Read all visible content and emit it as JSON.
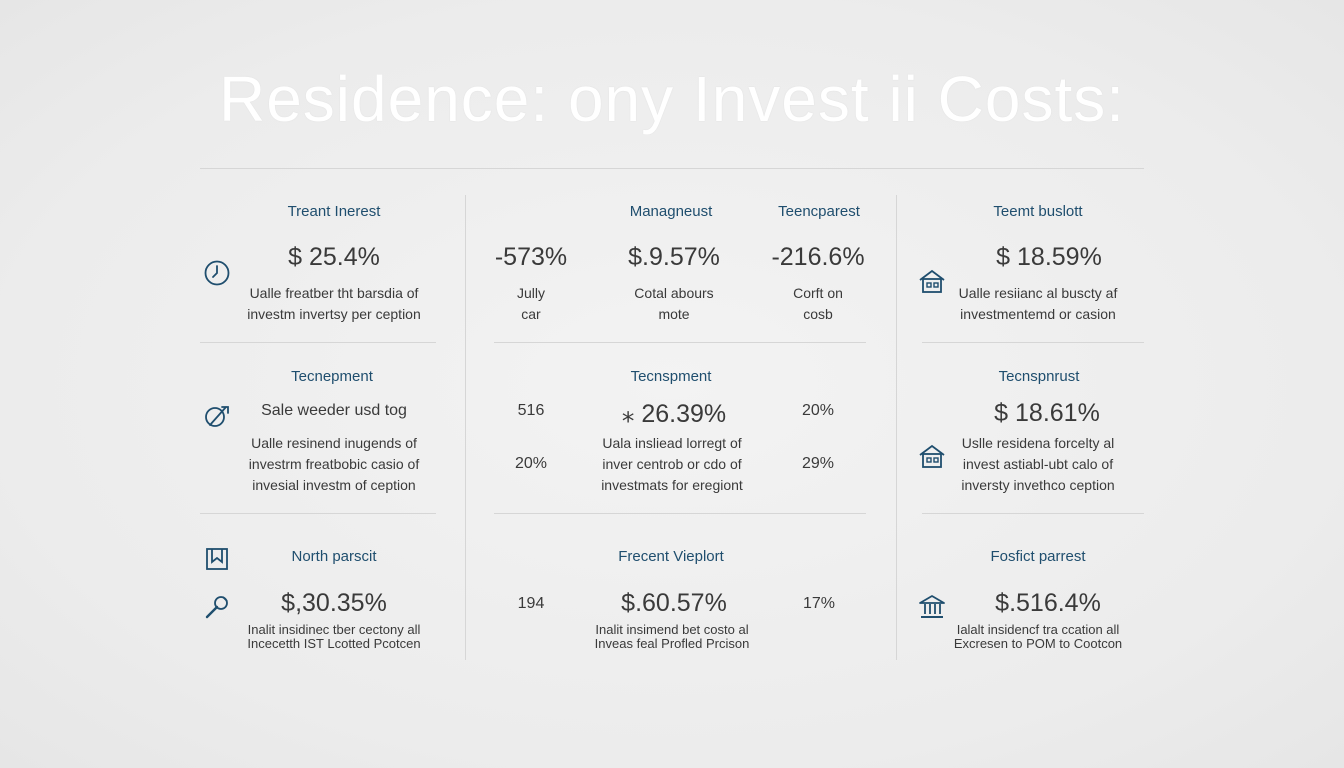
{
  "title": "Residence: ony Invest ii Costs:",
  "colors": {
    "accent": "#1f4e6e",
    "text": "#3a3a3a",
    "rule": "#d6d6d6"
  },
  "left": {
    "r1": {
      "header": "Treant Inerest",
      "value": "$ 25.4%",
      "desc1": "Ualle freatber tht barsdia of",
      "desc2": "investm invertsy per ception",
      "icon": "clock-icon"
    },
    "r2": {
      "header": "Tecnepment",
      "sub": "Sale weeder usd tog",
      "desc1": "Ualle resinend inugends of",
      "desc2": "investrm freatbobic casio of",
      "desc3": "invesial investm of ception",
      "icon": "leaf-pen-icon"
    },
    "r3": {
      "header": "North parscit",
      "value": "$,30.35%",
      "desc1": "Inalit insidinec tber cectony all",
      "desc2": "Incecetth IST Lcotted Pcotcen",
      "icon1": "building-icon",
      "icon2": "wrench-icon"
    }
  },
  "middle": {
    "r1": {
      "header_center": "Managneust",
      "header_right": "Teencparest",
      "left_value": "-573%",
      "left_desc1": "Jully",
      "left_desc2": "car",
      "center_value": "$.9.57%",
      "center_desc1": "Cotal abours",
      "center_desc2": "mote",
      "right_value": "-216.6%",
      "right_desc1": "Corft on",
      "right_desc2": "cosb"
    },
    "r2": {
      "header": "Tecnspment",
      "left_top": "516",
      "left_bottom": "20%",
      "center_value": "⁎ 26.39%",
      "center_desc1": "Uala insliead lorregt of",
      "center_desc2": "inver centrob or cdo of",
      "center_desc3": "investmats for eregiont",
      "right_top": "20%",
      "right_bottom": "29%"
    },
    "r3": {
      "header": "Frecent Vieplort",
      "left_value": "194",
      "center_value": "$.60.57%",
      "center_desc1": "Inalit insimend bet costo al",
      "center_desc2": "Inveas feal Profled Prcison",
      "right_value": "17%"
    }
  },
  "right": {
    "r1": {
      "header": "Teemt buslott",
      "value": "$ 18.59%",
      "desc1": "Ualle resiianc al buscty af",
      "desc2": "investmentemd or casion",
      "icon": "house-icon"
    },
    "r2": {
      "header": "Tecnspnrust",
      "value": "$ 18.61%",
      "desc1": "Uslle residena forcelty al",
      "desc2": "invest astiabl-ubt calo of",
      "desc3": "inversty invethco ception",
      "icon": "house-icon"
    },
    "r3": {
      "header": "Fosfict parrest",
      "value": "$.516.4%",
      "desc1": "Ialalt insidencf tra ccation all",
      "desc2": "Excresen to POM to Cootcon",
      "icon": "bank-icon"
    }
  }
}
